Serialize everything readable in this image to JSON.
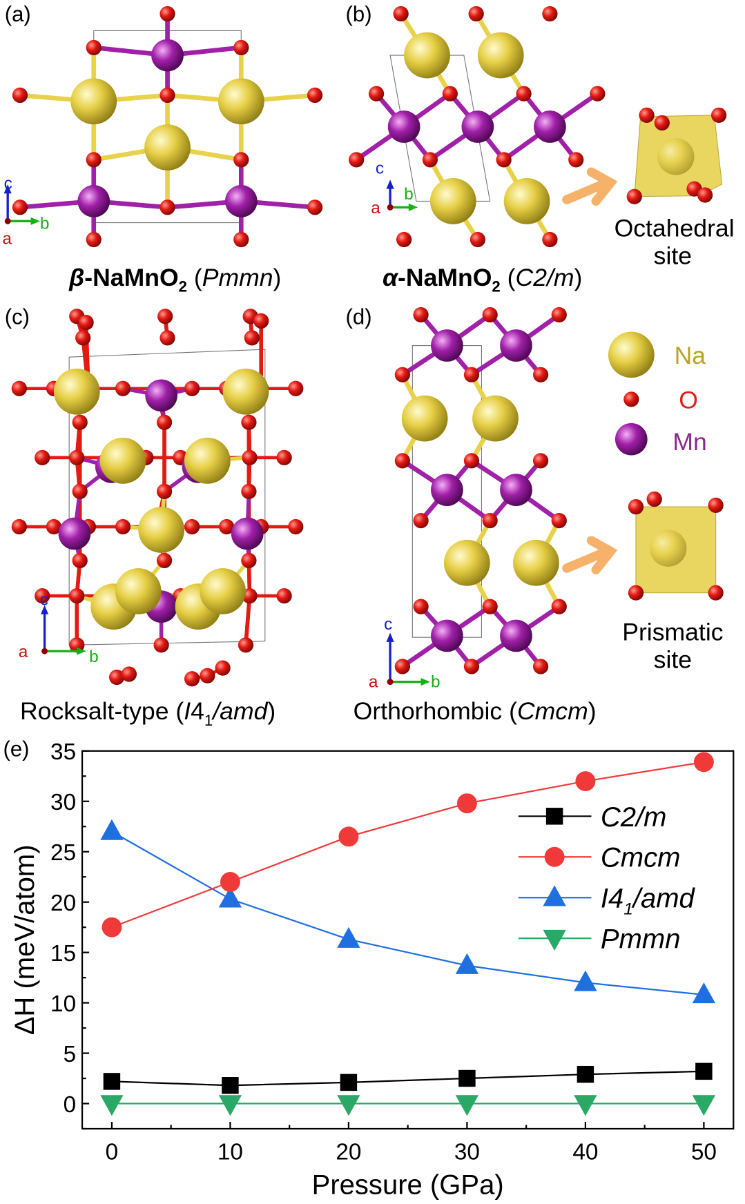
{
  "panels": {
    "a": {
      "label": "(a)",
      "title_greek": "β",
      "title_main": "-NaMnO",
      "title_sub": "2",
      "title_sg": "Pmmn"
    },
    "b": {
      "label": "(b)",
      "title_greek": "α",
      "title_main": "-NaMnO",
      "title_sub": "2",
      "title_sg": "C2/m",
      "site_line1": "Octahedral",
      "site_line2": "site"
    },
    "c": {
      "label": "(c)",
      "title_main": "Rocksalt-type (",
      "title_sg_a": "I",
      "title_sg_b": "4",
      "title_sg_sub": "1",
      "title_sg_c": "/amd",
      "title_end": ")"
    },
    "d": {
      "label": "(d)",
      "title_main": "Orthorhombic (",
      "title_sg": "Cmcm",
      "title_end": ")",
      "site_line1": "Prismatic",
      "site_line2": "site"
    },
    "e": {
      "label": "(e)"
    }
  },
  "axes_labels": {
    "a": "a",
    "b": "b",
    "c": "c"
  },
  "legend_atoms": [
    {
      "name": "Na",
      "color": "#b8a22a"
    },
    {
      "name": "O",
      "color": "#e0201b"
    },
    {
      "name": "Mn",
      "color": "#8a2a8f"
    }
  ],
  "colors": {
    "Na": "#e8d24a",
    "O": "#e31a12",
    "Mn": "#a020a8",
    "arrow": "#f6b26b"
  },
  "chart_data": {
    "type": "line",
    "xlabel": "Pressure (GPa)",
    "ylabel": "ΔH (meV/atom)",
    "x": [
      0,
      10,
      20,
      30,
      40,
      50
    ],
    "xlim": [
      -2.5,
      52.5
    ],
    "ylim": [
      -2.5,
      35
    ],
    "xticks": [
      "0",
      "10",
      "20",
      "30",
      "40",
      "50"
    ],
    "yticks": [
      "0",
      "5",
      "10",
      "15",
      "20",
      "25",
      "30",
      "35"
    ],
    "legend_placement": "right",
    "series": [
      {
        "name": "C2/m",
        "marker": "square",
        "color": "#000000",
        "values": [
          2.2,
          1.8,
          2.1,
          2.5,
          2.9,
          3.2
        ]
      },
      {
        "name": "Cmcm",
        "marker": "circle",
        "color": "#f03a3a",
        "values": [
          17.5,
          22.0,
          26.5,
          29.8,
          32.0,
          33.9
        ]
      },
      {
        "name": "I41/amd",
        "name_main": "I4",
        "name_sub": "1",
        "name_end": "/amd",
        "marker": "triangle-up",
        "color": "#1f6fe0",
        "values": [
          27.0,
          20.3,
          16.3,
          13.7,
          12.0,
          10.8
        ]
      },
      {
        "name": "Pmmn",
        "marker": "triangle-down",
        "color": "#2aa866",
        "values": [
          0,
          0,
          0,
          0,
          0,
          0
        ]
      }
    ]
  }
}
